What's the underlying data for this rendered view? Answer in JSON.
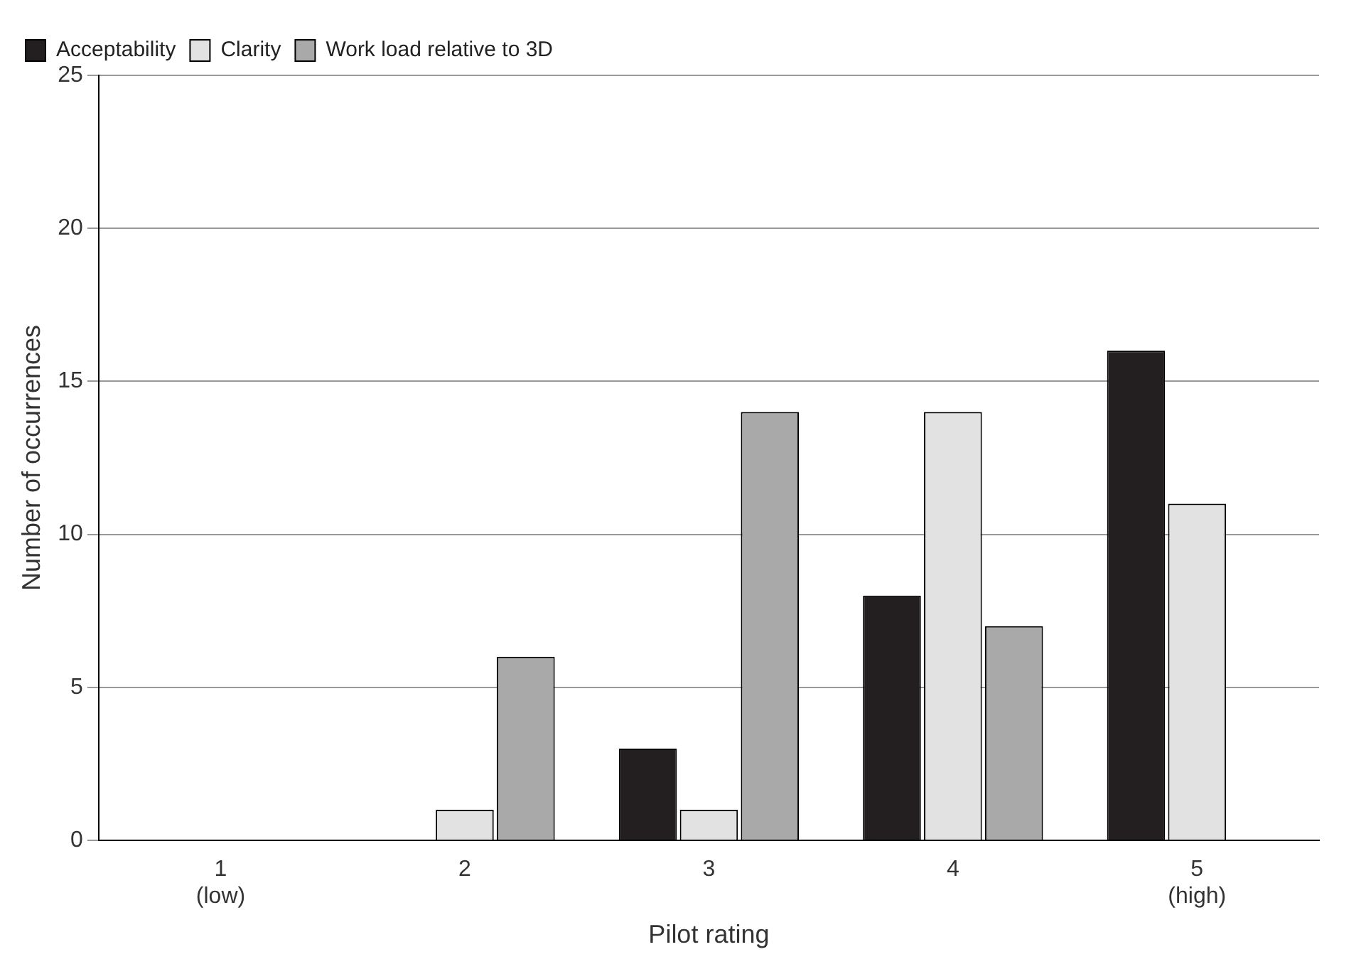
{
  "chart_data": {
    "type": "bar",
    "xlabel": "Pilot rating",
    "ylabel": "Number of occurrences",
    "categories": [
      "1\n(low)",
      "2",
      "3",
      "4",
      "5\n(high)"
    ],
    "series": [
      {
        "name": "Acceptability",
        "color": "#231f20",
        "values": [
          0,
          0,
          3,
          8,
          16
        ]
      },
      {
        "name": "Clarity",
        "color": "#e2e2e2",
        "values": [
          0,
          1,
          1,
          14,
          11
        ]
      },
      {
        "name": "Work load relative to 3D",
        "color": "#a9a9a9",
        "values": [
          0,
          6,
          14,
          7,
          0
        ]
      }
    ],
    "ylim": [
      0,
      25
    ],
    "yticks": [
      0,
      5,
      10,
      15,
      20,
      25
    ],
    "grid": "y",
    "legend": "top left"
  }
}
